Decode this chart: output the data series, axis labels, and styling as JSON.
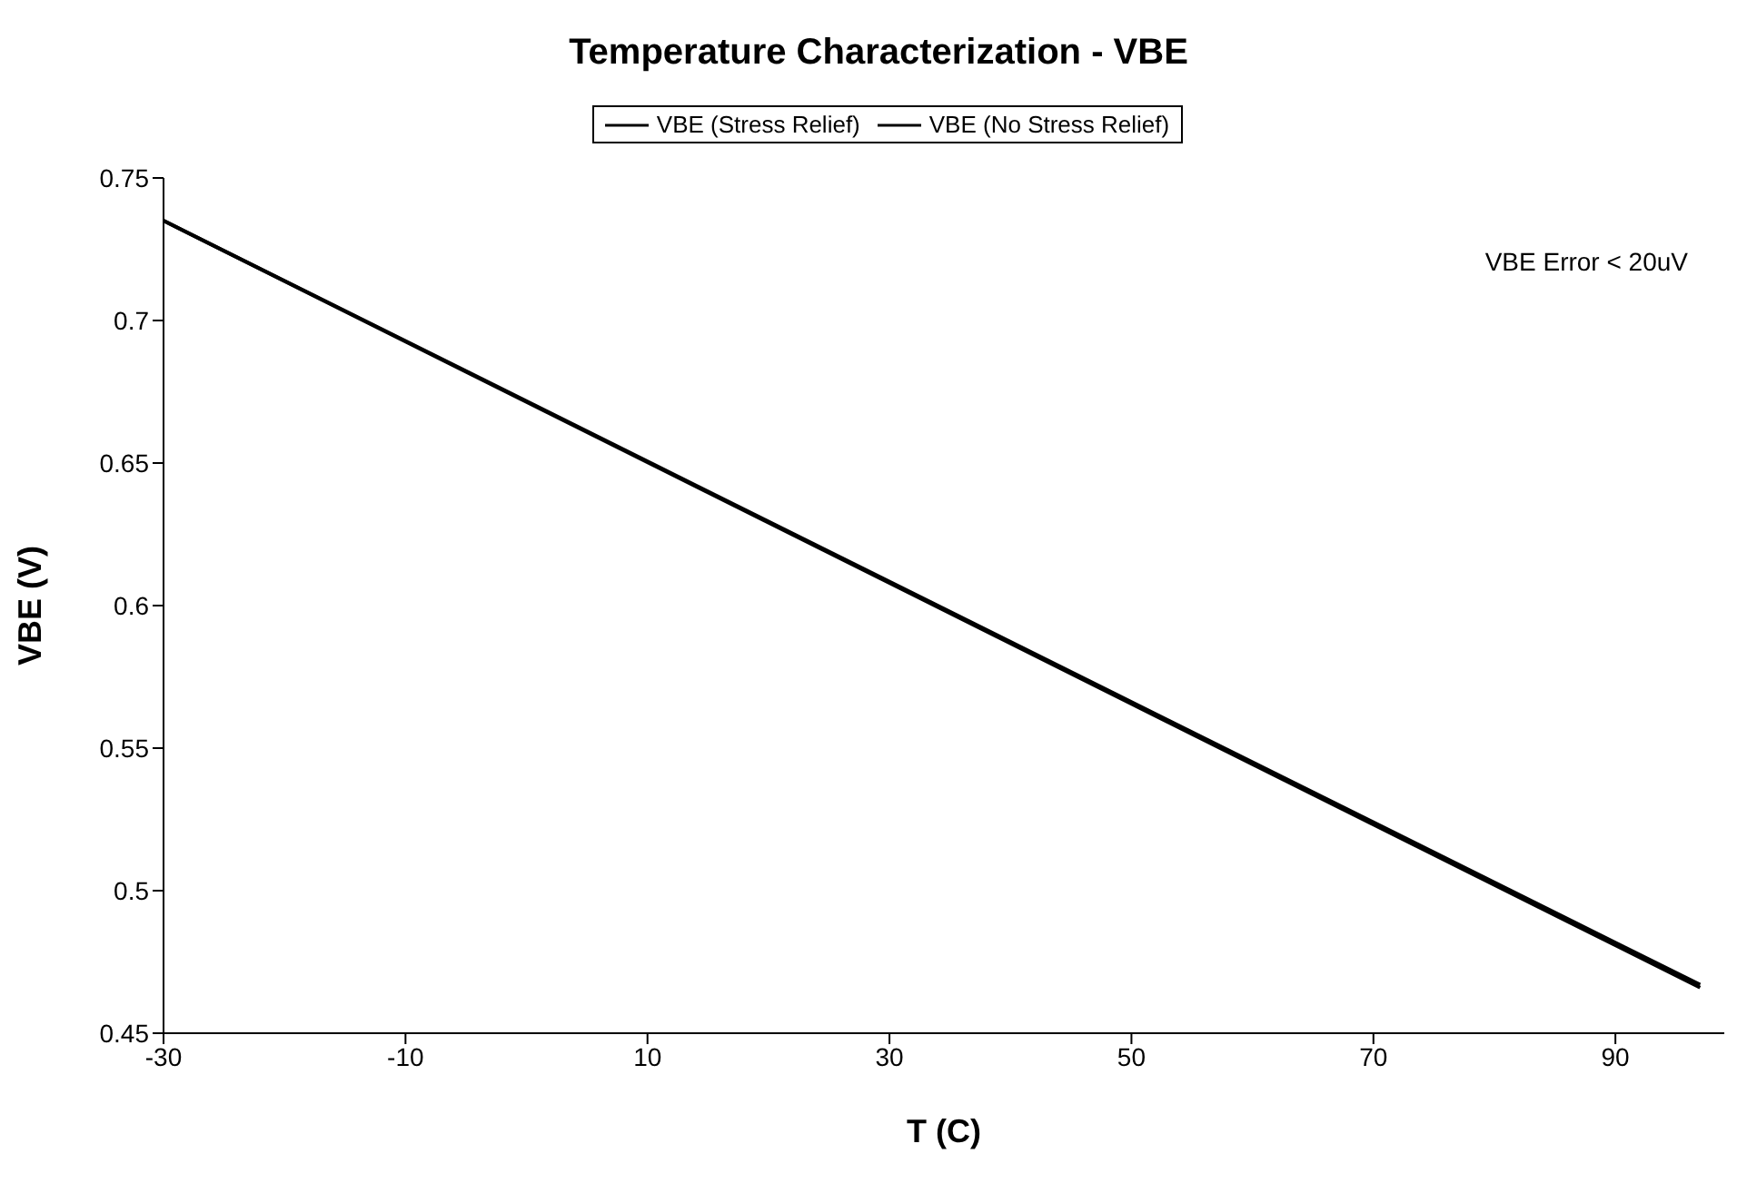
{
  "chart_data": {
    "type": "line",
    "title": "Temperature Characterization - VBE",
    "xlabel": "T (C)",
    "ylabel": "VBE (V)",
    "annotations": [
      "VBE Error < 20uV"
    ],
    "x": [
      -30,
      97
    ],
    "series": [
      {
        "name": "VBE (Stress Relief)",
        "color": "#000000",
        "values": [
          0.735,
          0.467
        ]
      },
      {
        "name": "VBE (No Stress Relief)",
        "color": "#000000",
        "values": [
          0.735,
          0.466
        ]
      }
    ],
    "xlim": [
      -30,
      99
    ],
    "xticks": [
      -30,
      -10,
      10,
      30,
      50,
      70,
      90
    ],
    "ylim": [
      0.45,
      0.75
    ],
    "yticks": [
      0.45,
      0.5,
      0.55,
      0.6,
      0.65,
      0.7,
      0.75
    ],
    "grid": false,
    "legend": "top",
    "marker": "none",
    "line_style": "solid"
  }
}
